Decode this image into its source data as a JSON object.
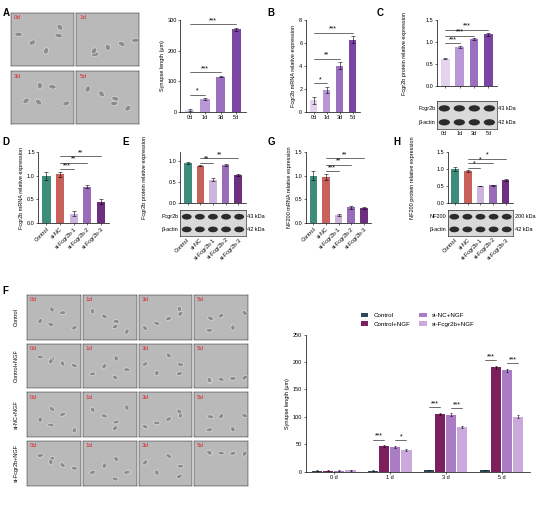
{
  "chart_data": [
    {
      "type": "bar",
      "categories": [
        "0d",
        "1d",
        "3d",
        "5d"
      ],
      "values": [
        5,
        40,
        115,
        270
      ],
      "errors": [
        2,
        3,
        3,
        5
      ],
      "colors": [
        "#e3d3ee",
        "#b997d6",
        "#9a6fc0",
        "#7a45a3"
      ],
      "ylabel": "Synapse length (μm)",
      "ylim": [
        0,
        300
      ],
      "yticks": [
        0,
        100,
        200,
        300
      ],
      "annotations": [
        {
          "between": [
            "0d",
            "1d"
          ],
          "text": "*"
        },
        {
          "between": [
            "0d",
            "3d"
          ],
          "text": "***"
        },
        {
          "between": [
            "0d",
            "5d"
          ],
          "text": "***"
        }
      ]
    },
    {
      "type": "bar",
      "panel": "B",
      "categories": [
        "0d",
        "1d",
        "3d",
        "5d"
      ],
      "values": [
        1.0,
        1.9,
        4.0,
        6.3
      ],
      "errors": [
        0.3,
        0.25,
        0.3,
        0.3
      ],
      "colors": [
        "#e3d3ee",
        "#b997d6",
        "#9a6fc0",
        "#7a45a3"
      ],
      "ylabel": "Fcgr2b mRNA relative expression",
      "ylim": [
        0,
        8
      ],
      "yticks": [
        0,
        2,
        4,
        6,
        8
      ],
      "annotations": [
        {
          "between": [
            "0d",
            "1d"
          ],
          "text": "*"
        },
        {
          "between": [
            "0d",
            "3d"
          ],
          "text": "**"
        },
        {
          "between": [
            "0d",
            "5d"
          ],
          "text": "***"
        }
      ]
    },
    {
      "type": "bar",
      "panel": "C",
      "categories": [
        "0d",
        "1d",
        "3d",
        "5d"
      ],
      "values": [
        0.63,
        0.9,
        1.07,
        1.18
      ],
      "errors": [
        0.02,
        0.02,
        0.02,
        0.04
      ],
      "colors": [
        "#e3d3ee",
        "#b997d6",
        "#9a6fc0",
        "#7a45a3"
      ],
      "ylabel": "Fcgr2b protein relative expression",
      "ylim": [
        0,
        1.5
      ],
      "yticks": [
        {
          "value": 0,
          "label": "0.0"
        },
        0.5,
        {
          "value": 1,
          "label": "1.0"
        },
        1.5
      ],
      "annotations": [
        {
          "between": [
            "0d",
            "1d"
          ],
          "text": "***"
        },
        {
          "between": [
            "0d",
            "3d"
          ],
          "text": "***"
        },
        {
          "between": [
            "0d",
            "5d"
          ],
          "text": "***"
        }
      ],
      "blot": {
        "bands": [
          {
            "name": "Fcgr2b",
            "size": "43 kDa"
          },
          {
            "name": "β-actin",
            "size": "42 kDa"
          }
        ]
      }
    },
    {
      "type": "bar",
      "panel": "D",
      "categories": [
        "Control",
        "si-NC",
        "si-Fcgr2b-1",
        "si-Fcgr2b-2",
        "si-Fcgr2b-3"
      ],
      "values": [
        1.0,
        1.03,
        0.2,
        0.77,
        0.45
      ],
      "errors": [
        0.08,
        0.05,
        0.06,
        0.03,
        0.05
      ],
      "colors": [
        "#3d8c7c",
        "#c8605c",
        "#cdb4df",
        "#9a6bb8",
        "#6e2f80"
      ],
      "ylabel": "Fcgr2b mRNA relative expression",
      "ylim": [
        0,
        1.5
      ],
      "yticks": [
        {
          "value": 0,
          "label": "0.0"
        },
        0.5,
        {
          "value": 1,
          "label": "1.0"
        },
        1.5
      ],
      "annotations": [
        {
          "between": [
            "si-NC",
            "si-Fcgr2b-1"
          ],
          "text": "***"
        },
        {
          "between": [
            "si-NC",
            "si-Fcgr2b-2"
          ],
          "text": "**"
        },
        {
          "between": [
            "si-NC",
            "si-Fcgr2b-3"
          ],
          "text": "**"
        }
      ]
    },
    {
      "type": "bar",
      "panel": "E",
      "categories": [
        "Control",
        "si-NC",
        "si-Fcgr2b-1",
        "si-Fcgr2b-2",
        "si-Fcgr2b-3"
      ],
      "values": [
        0.95,
        0.88,
        0.55,
        0.9,
        0.65
      ],
      "errors": [
        0.02,
        0.02,
        0.03,
        0.02,
        0.02
      ],
      "colors": [
        "#3d8c7c",
        "#c8605c",
        "#cdb4df",
        "#9a6bb8",
        "#6e2f80"
      ],
      "ylabel": "Fcgr2b protein relative expression",
      "ylim": [
        0,
        1.2
      ],
      "yticks": [
        {
          "value": 0,
          "label": "0.0"
        },
        0.5,
        {
          "value": 1,
          "label": "1.0"
        }
      ],
      "annotations": [
        {
          "between": [
            "si-NC",
            "si-Fcgr2b-1"
          ],
          "text": "**"
        },
        {
          "between": [
            "si-NC",
            "si-Fcgr2b-3"
          ],
          "text": "**"
        }
      ],
      "blot": {
        "bands": [
          {
            "name": "Fcgr2b",
            "size": "43 kDa"
          },
          {
            "name": "β-actin",
            "size": "42 kDa"
          }
        ]
      }
    },
    {
      "type": "bar",
      "panel": "G",
      "categories": [
        "Control",
        "si-NC",
        "si-Fcgr2b-1",
        "si-Fcgr2b-2",
        "si-Fcgr2b-3"
      ],
      "values": [
        1.0,
        0.98,
        0.17,
        0.33,
        0.32
      ],
      "errors": [
        0.1,
        0.06,
        0.02,
        0.04,
        0.03
      ],
      "colors": [
        "#3d8c7c",
        "#c8605c",
        "#cdb4df",
        "#9a6bb8",
        "#6e2f80"
      ],
      "ylabel": "NF200 mRNA relative expression",
      "ylim": [
        0,
        1.5
      ],
      "yticks": [
        {
          "value": 0,
          "label": "0.0"
        },
        0.5,
        {
          "value": 1,
          "label": "1.0"
        },
        1.5
      ],
      "annotations": [
        {
          "between": [
            "si-NC",
            "si-Fcgr2b-1"
          ],
          "text": "***"
        },
        {
          "between": [
            "si-NC",
            "si-Fcgr2b-2"
          ],
          "text": "**"
        },
        {
          "between": [
            "si-NC",
            "si-Fcgr2b-3"
          ],
          "text": "**"
        }
      ]
    },
    {
      "type": "bar",
      "panel": "H",
      "categories": [
        "Control",
        "si-NC",
        "si-Fcgr2b-1",
        "si-Fcgr2b-2",
        "si-Fcgr2b-3"
      ],
      "values": [
        1.0,
        0.95,
        0.5,
        0.52,
        0.68
      ],
      "errors": [
        0.05,
        0.03,
        0.01,
        0.01,
        0.03
      ],
      "colors": [
        "#3d8c7c",
        "#c8605c",
        "#cdb4df",
        "#9a6bb8",
        "#6e2f80"
      ],
      "ylabel": "NF200 protein relative expression",
      "ylim": [
        0,
        1.5
      ],
      "yticks": [
        {
          "value": 0,
          "label": "0.0"
        },
        0.5,
        {
          "value": 1,
          "label": "1.0"
        },
        1.5
      ],
      "annotations": [
        {
          "between": [
            "si-NC",
            "si-Fcgr2b-1"
          ],
          "text": "*"
        },
        {
          "between": [
            "si-NC",
            "si-Fcgr2b-2"
          ],
          "text": "*"
        },
        {
          "between": [
            "si-NC",
            "si-Fcgr2b-3"
          ],
          "text": "*"
        }
      ],
      "blot": {
        "bands": [
          {
            "name": "NF200",
            "size": "200 kDa"
          },
          {
            "name": "β-actin",
            "size": "42 kDa"
          }
        ]
      }
    },
    {
      "type": "bar",
      "categories": [
        "0 d",
        "1 d",
        "3 d",
        "5 d"
      ],
      "ylabel": "Synapse length (μm)",
      "series": [
        {
          "name": "Control",
          "color": "#2f4858",
          "values": [
            1.5,
            1.8,
            2.2,
            3.0
          ],
          "errors": [
            0.8,
            0.6,
            0.3,
            0.3
          ]
        },
        {
          "name": "Control+NGF",
          "color": "#7b1f5e",
          "values": [
            1.6,
            46,
            105,
            190
          ],
          "errors": [
            0.8,
            2,
            2,
            3
          ]
        },
        {
          "name": "si-NC+NGF",
          "color": "#a97cc4",
          "values": [
            1.8,
            45,
            104,
            185
          ],
          "errors": [
            0.9,
            2,
            2,
            3
          ]
        },
        {
          "name": "si-Fcgr2b+NGF",
          "color": "#cba9dc",
          "values": [
            2.0,
            40,
            82,
            100
          ],
          "errors": [
            1.5,
            2,
            2,
            3
          ]
        }
      ],
      "ylim": [
        0,
        250
      ],
      "yticks": [
        0,
        50,
        100,
        150,
        200,
        250
      ],
      "legend": "upper center",
      "annotations": [
        {
          "group": "1 d",
          "between": [
            "Control",
            "Control+NGF"
          ],
          "text": "***"
        },
        {
          "group": "1 d",
          "between": [
            "si-NC+NGF",
            "si-Fcgr2b+NGF"
          ],
          "text": "*"
        },
        {
          "group": "3 d",
          "between": [
            "Control",
            "Control+NGF"
          ],
          "text": "***"
        },
        {
          "group": "3 d",
          "between": [
            "si-NC+NGF",
            "si-Fcgr2b+NGF"
          ],
          "text": "***"
        },
        {
          "group": "5 d",
          "between": [
            "Control",
            "Control+NGF"
          ],
          "text": "***"
        },
        {
          "group": "5 d",
          "between": [
            "si-NC+NGF",
            "si-Fcgr2b+NGF"
          ],
          "text": "***"
        }
      ]
    }
  ],
  "image_panels": [
    {
      "panel": "A",
      "labels": [
        "0d",
        "1d",
        "3d",
        "5d"
      ]
    },
    {
      "panel": "F",
      "rows": [
        "Control",
        "Control+NGF",
        "si-NC+NGF",
        "si-Fcgr2b+NGF"
      ],
      "cols": [
        "0d",
        "1d",
        "3d",
        "5d"
      ]
    }
  ]
}
